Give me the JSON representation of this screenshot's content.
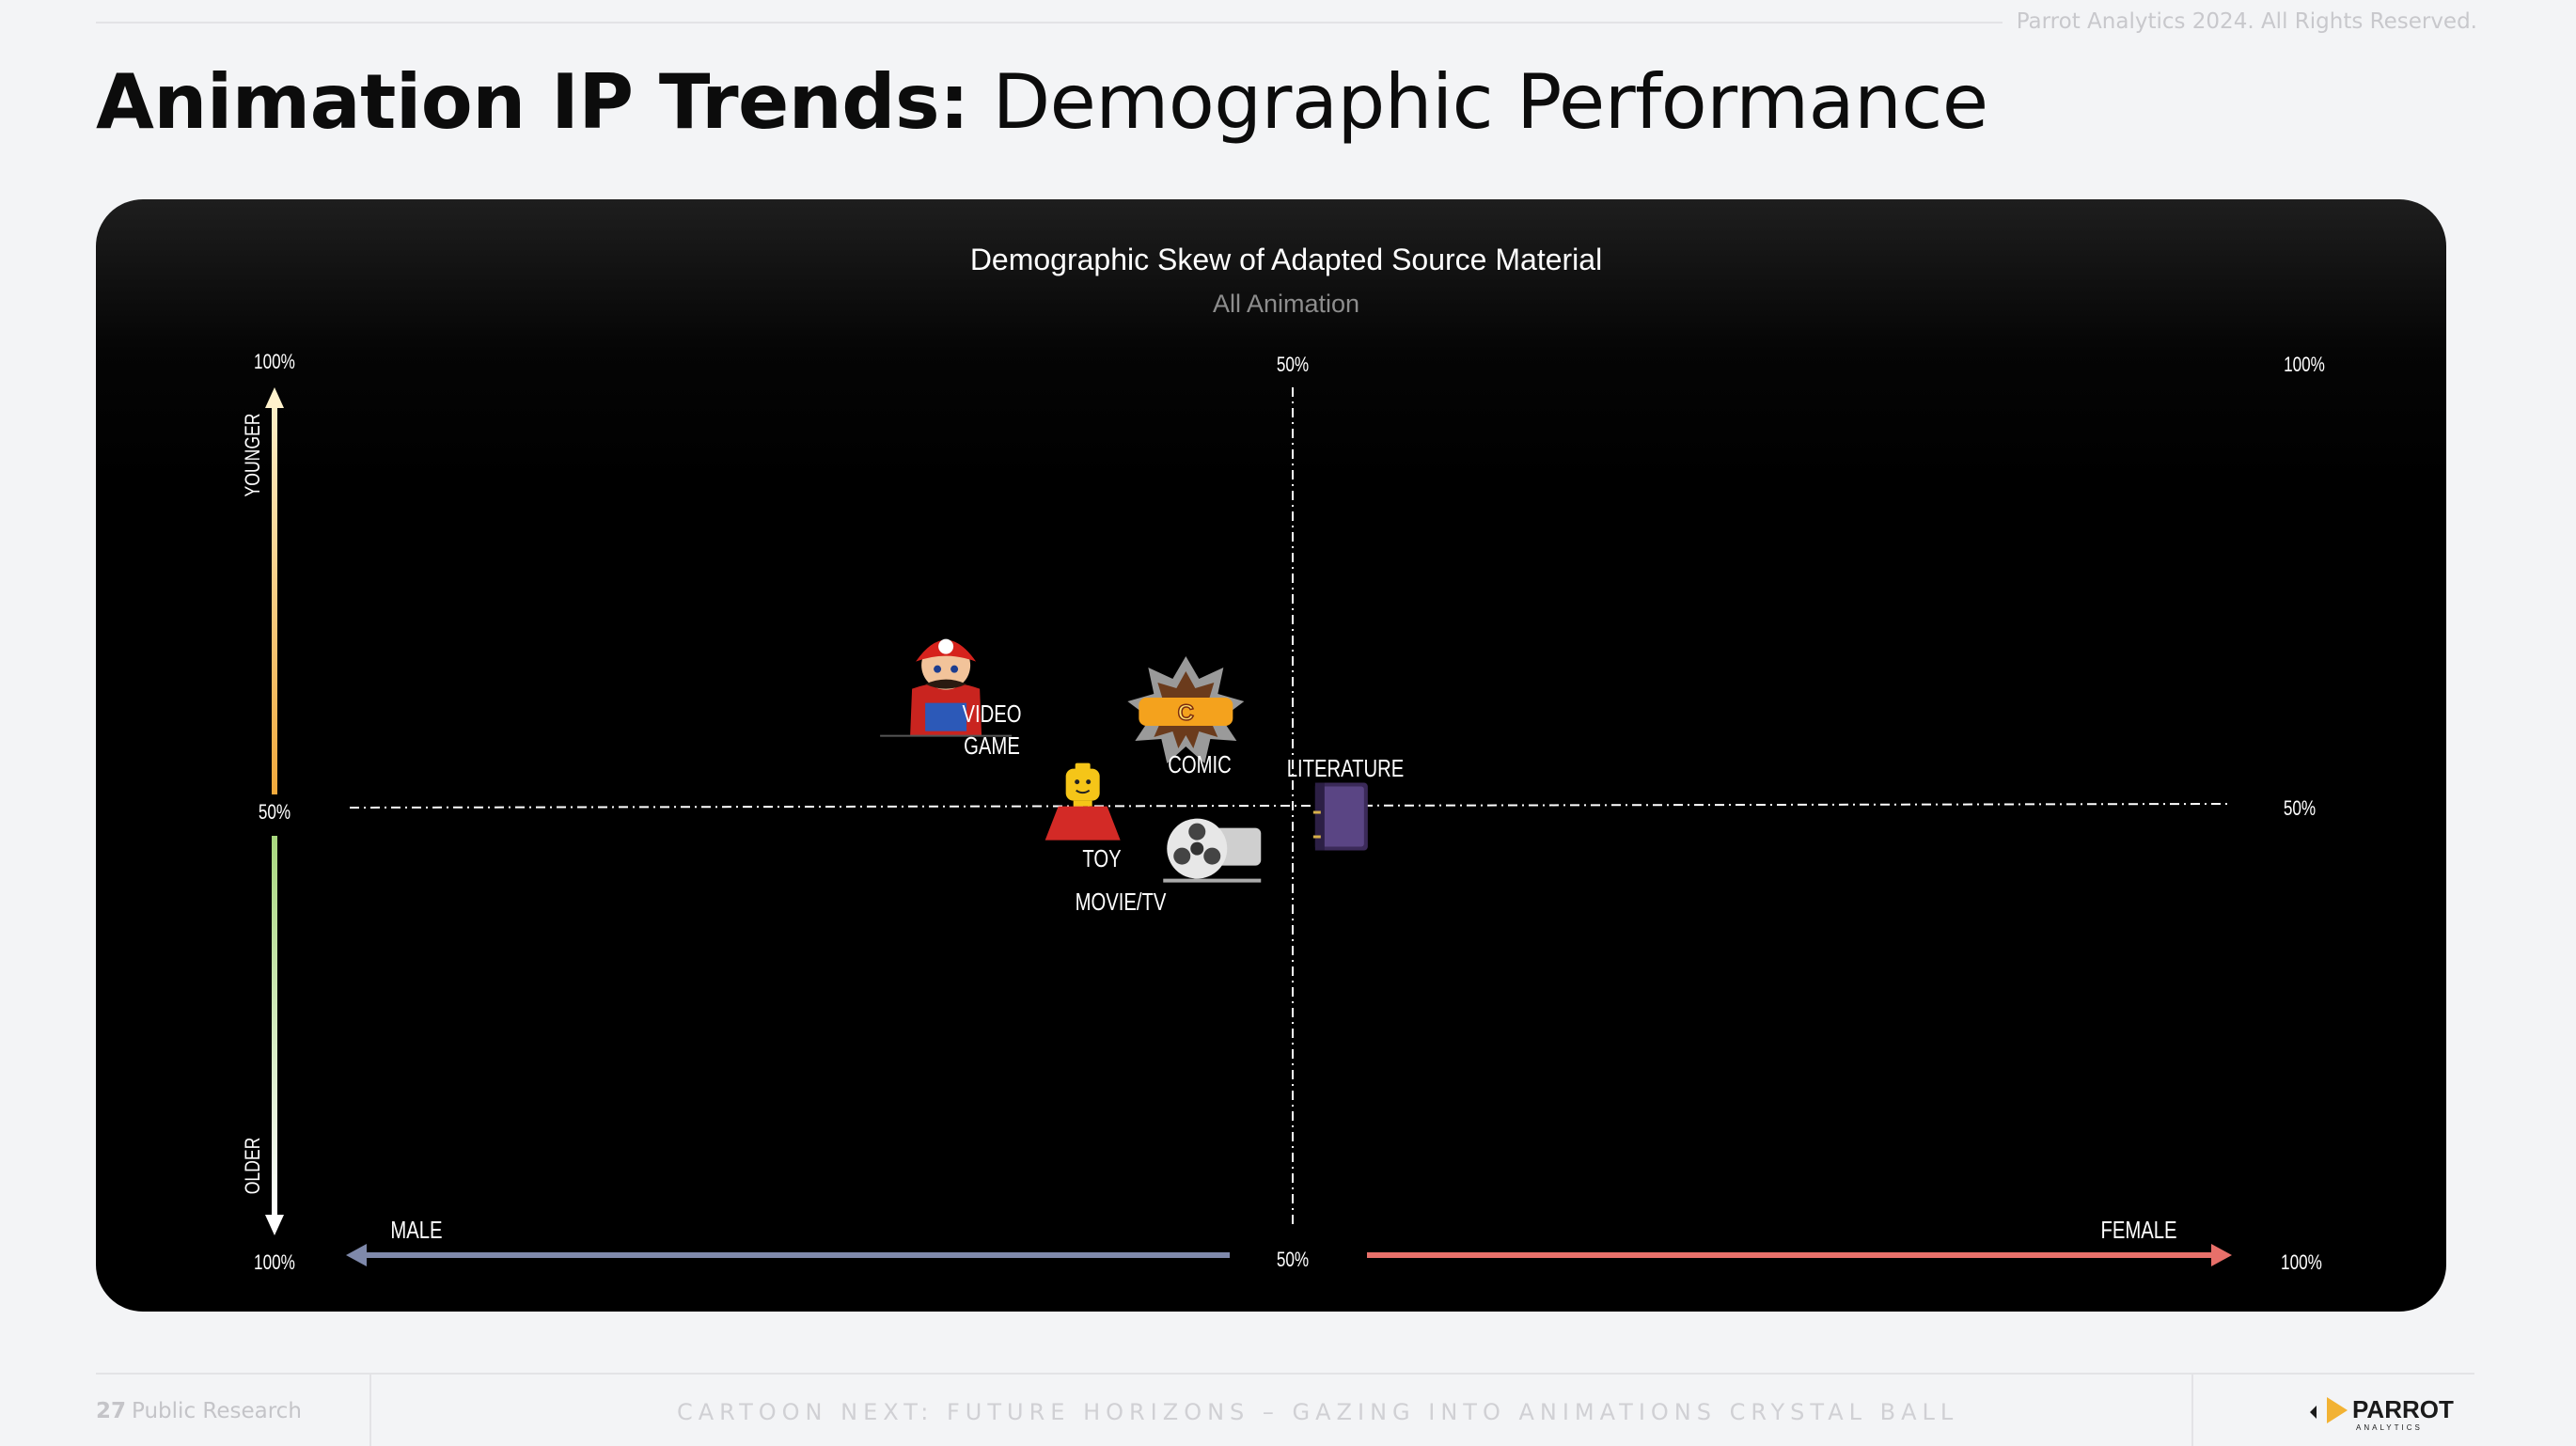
{
  "header": {
    "copyright": "Parrot Analytics 2024. All Rights Reserved.",
    "title_bold": "Animation IP Trends:",
    "title_light": "Demographic Performance"
  },
  "chart_data": {
    "type": "scatter",
    "title": "Demographic Skew of Adapted Source Material",
    "subtitle": "All Animation",
    "x_axis": {
      "left_label": "MALE",
      "right_label": "FEMALE",
      "tick_left": "100%",
      "tick_center": "50%",
      "tick_right": "100%",
      "range": [
        -50,
        50
      ]
    },
    "y_axis": {
      "top_label": "YOUNGER",
      "bottom_label": "OLDER",
      "tick_top": "100%",
      "tick_center": "50%",
      "tick_bottom": "100%",
      "range": [
        -50,
        50
      ]
    },
    "right_ticks": {
      "top": "100%",
      "middle": "50%",
      "bottom": "100%"
    },
    "axis_colors": {
      "male": "#7f89ab",
      "female": "#e8706a",
      "younger_top": "#fff2cc",
      "younger_bottom": "#f2a93b",
      "older_top": "#a8d87e",
      "older_bottom": "#ffffff"
    },
    "points": [
      {
        "label": "VIDEO GAME",
        "icon": "mario-icon",
        "x": -18.5,
        "y": 14.6
      },
      {
        "label": "COMIC",
        "icon": "comics-burst-icon",
        "x": -5.7,
        "y": 11.4
      },
      {
        "label": "TOY",
        "icon": "lego-figure-icon",
        "x": -11.2,
        "y": -1.2
      },
      {
        "label": "MOVIE/TV",
        "icon": "film-reel-icon",
        "x": -4.3,
        "y": -5.6
      },
      {
        "label": "LITERATURE",
        "icon": "book-icon",
        "x": 2.6,
        "y": -1.3
      }
    ]
  },
  "footer": {
    "page_number": "27",
    "section": "Public Research",
    "tagline": "CARTOON NEXT: FUTURE HORIZONS – GAZING INTO ANIMATIONS CRYSTAL BALL",
    "brand_name": "PARROT",
    "brand_sub": "ANALYTICS"
  }
}
